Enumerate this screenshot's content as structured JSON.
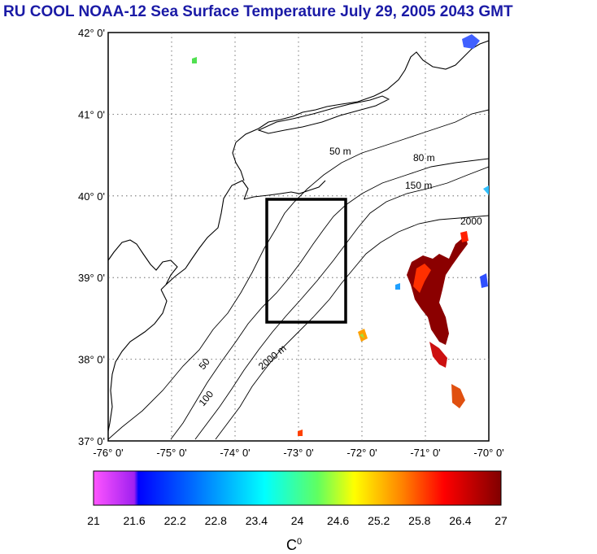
{
  "title": "RU COOL  NOAA-12 Sea Surface Temperature July 29, 2005 2043 GMT",
  "map": {
    "lat_labels": [
      "42° 0'",
      "41° 0'",
      "40° 0'",
      "39° 0'",
      "38° 0'",
      "37° 0'"
    ],
    "lon_labels": [
      "-76° 0'",
      "-75° 0'",
      "-74° 0'",
      "-73° 0'",
      "-72° 0'",
      "-71° 0'",
      "-70° 0'"
    ],
    "lat_range": [
      37,
      42
    ],
    "lon_range": [
      -76,
      -70
    ],
    "grid": "dotted",
    "isobath_labels": [
      "50 m",
      "80 m",
      "150 m",
      "2000 m",
      "2000",
      "50",
      "100"
    ],
    "study_box": {
      "lon_min": -73.5,
      "lon_max": -72.25,
      "lat_min": 38.5,
      "lat_max": 40.0
    }
  },
  "colorbar": {
    "ticks": [
      "21",
      "21.6",
      "22.2",
      "22.8",
      "23.4",
      "24",
      "24.6",
      "25.2",
      "25.8",
      "26.4",
      "27"
    ],
    "min": 21,
    "max": 27,
    "unit": "C",
    "unit_sup": "0",
    "colors": [
      "#ff44ff",
      "#c020ff",
      "#0000ff",
      "#0070ff",
      "#00ffff",
      "#60ff60",
      "#ffff00",
      "#ff8000",
      "#ff0000",
      "#c00000",
      "#800000"
    ]
  }
}
